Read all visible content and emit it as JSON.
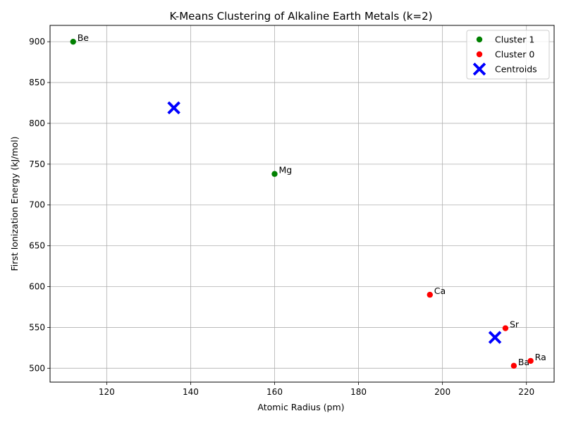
{
  "chart_data": {
    "type": "scatter",
    "title": "K-Means Clustering of Alkaline Earth Metals (k=2)",
    "xlabel": "Atomic Radius (pm)",
    "ylabel": "First Ionization Energy (kJ/mol)",
    "xlim": [
      106.5,
      226.6
    ],
    "ylim": [
      483.0,
      920.0
    ],
    "xticks": [
      120,
      140,
      160,
      180,
      200,
      220
    ],
    "yticks": [
      500,
      550,
      600,
      650,
      700,
      750,
      800,
      850,
      900
    ],
    "grid": true,
    "legend_position": "top-right",
    "series": [
      {
        "name": "Cluster 1",
        "color": "#008000",
        "marker": "circle",
        "points": [
          {
            "label": "Be",
            "x": 112,
            "y": 900
          },
          {
            "label": "Mg",
            "x": 160,
            "y": 738
          }
        ]
      },
      {
        "name": "Cluster 0",
        "color": "#ff0000",
        "marker": "circle",
        "points": [
          {
            "label": "Ca",
            "x": 197,
            "y": 590
          },
          {
            "label": "Sr",
            "x": 215,
            "y": 549
          },
          {
            "label": "Ba",
            "x": 217,
            "y": 503
          },
          {
            "label": "Ra",
            "x": 221,
            "y": 509
          }
        ]
      },
      {
        "name": "Centroids",
        "color": "#0000ff",
        "marker": "x",
        "points": [
          {
            "x": 136,
            "y": 819
          },
          {
            "x": 212.5,
            "y": 537.75
          }
        ]
      }
    ]
  }
}
